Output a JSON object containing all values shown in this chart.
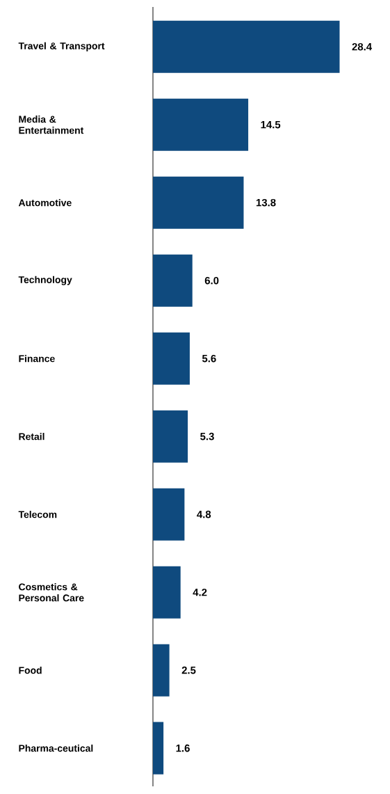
{
  "chart_data": {
    "type": "bar",
    "orientation": "horizontal",
    "categories": [
      "Travel & Transport",
      "Media & Entertainment",
      "Automotive",
      "Technology",
      "Finance",
      "Retail",
      "Telecom",
      "Cosmetics & Personal Care",
      "Food",
      "Pharma-ceutical"
    ],
    "values": [
      28.4,
      14.5,
      13.8,
      6.0,
      5.6,
      5.3,
      4.8,
      4.2,
      2.5,
      1.6
    ],
    "value_labels": [
      "28.4",
      "14.5",
      "13.8",
      "6.0",
      "5.6",
      "5.3",
      "4.8",
      "4.2",
      "2.5",
      "1.6"
    ],
    "color": "#0f4a7e"
  }
}
